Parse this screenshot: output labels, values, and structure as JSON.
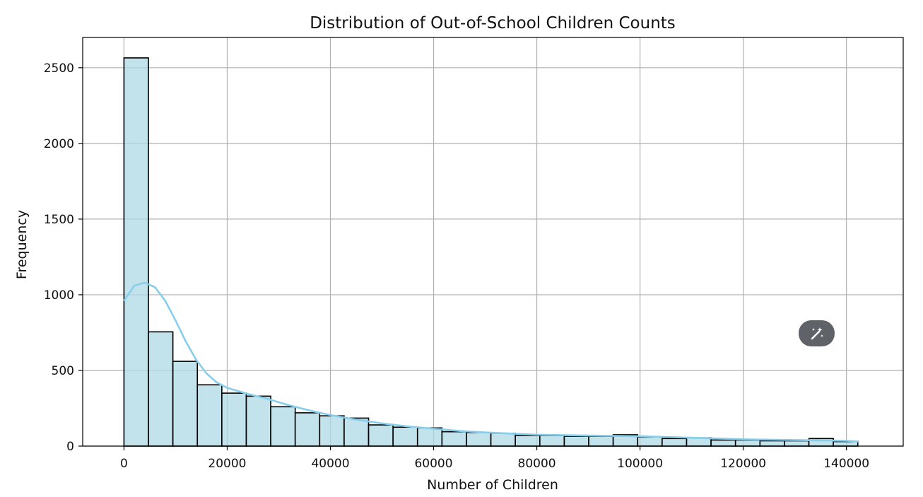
{
  "chart_data": {
    "type": "bar",
    "title": "Distribution of Out-of-School Children Counts",
    "xlabel": "Number of Children",
    "ylabel": "Frequency",
    "xlim": [
      -8000,
      151000
    ],
    "ylim": [
      0,
      2700
    ],
    "xticks": [
      0,
      20000,
      40000,
      60000,
      80000,
      100000,
      120000,
      140000
    ],
    "yticks": [
      0,
      500,
      1000,
      1500,
      2000,
      2500
    ],
    "grid": true,
    "bar_color": "#add8e6",
    "bar_edge_color": "#000000",
    "kde_color": "#87ceeb",
    "bin_width": 4740,
    "x": [
      0,
      4740,
      9480,
      14220,
      18960,
      23700,
      28440,
      33180,
      37920,
      42660,
      47400,
      52140,
      56880,
      61620,
      66360,
      71100,
      75840,
      80580,
      85320,
      90060,
      94800,
      99540,
      104280,
      109020,
      113760,
      118500,
      123240,
      127980,
      132720,
      137460
    ],
    "values": [
      2565,
      755,
      560,
      405,
      350,
      330,
      260,
      220,
      200,
      185,
      140,
      125,
      120,
      95,
      90,
      85,
      70,
      70,
      65,
      65,
      75,
      60,
      50,
      55,
      40,
      40,
      35,
      35,
      50,
      30
    ],
    "kde": {
      "x": [
        0,
        2000,
        4000,
        6000,
        8000,
        10000,
        12000,
        14000,
        16000,
        18000,
        20000,
        24000,
        28000,
        32000,
        36000,
        40000,
        45000,
        50000,
        55000,
        60000,
        65000,
        70000,
        80000,
        90000,
        100000,
        110000,
        120000,
        130000,
        140000,
        142500
      ],
      "y": [
        960,
        1060,
        1080,
        1050,
        960,
        830,
        690,
        570,
        480,
        420,
        385,
        345,
        310,
        270,
        235,
        205,
        175,
        150,
        130,
        115,
        100,
        90,
        75,
        70,
        65,
        55,
        45,
        40,
        35,
        30
      ]
    }
  },
  "fab": {
    "icon": "magic-wand-icon"
  }
}
